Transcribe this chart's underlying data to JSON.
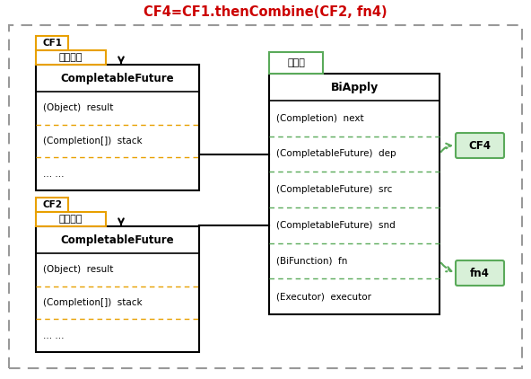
{
  "title": "CF4=CF1.thenCombine(CF2, fn4)",
  "title_color": "#cc0000",
  "title_fontsize": 10.5,
  "bg_color": "#ffffff",
  "cf1_label": "CF1",
  "cf2_label": "CF2",
  "cf4_label": "CF4",
  "fn4_label": "fn4",
  "biapply_title": "BiApply",
  "cf_title": "CompletableFuture",
  "observed_cn": "被观察者",
  "observer_cn": "观察者",
  "cf_fields": [
    "(Object)  result",
    "(Completion[])  stack",
    "... ..."
  ],
  "ba_fields": [
    "(Completion)  next",
    "(CompletableFuture)  dep",
    "(CompletableFuture)  src",
    "(CompletableFuture)  snd",
    "(BiFunction)  fn",
    "(Executor)  executor"
  ],
  "orange": "#e8a000",
  "green": "#5aaa5a",
  "green_bg": "#d8f0d8",
  "gray_dash": "#999999",
  "black": "#000000",
  "white": "#ffffff"
}
